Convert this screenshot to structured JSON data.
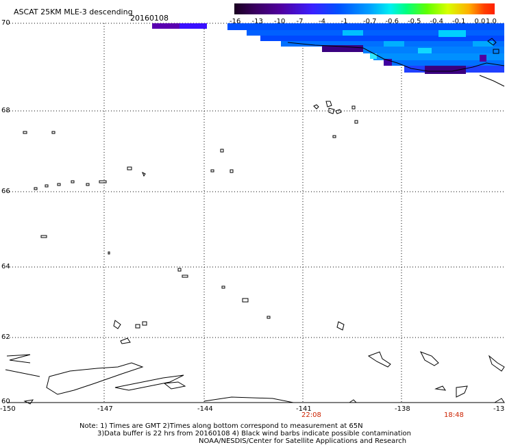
{
  "header": {
    "title": "ASCAT 25KM MLE-3 descending",
    "date": "20160108"
  },
  "colorbar": {
    "labels": [
      "-16",
      "-13",
      "-10",
      "-7",
      "-4",
      "-1",
      "-0.7",
      "-0.6",
      "-0.5",
      "-0.4",
      "-0.1",
      "0.0",
      "1.0"
    ],
    "colors": [
      "#1a0020",
      "#2a0050",
      "#3a0080",
      "#4800c0",
      "#3000ff",
      "#0040ff",
      "#0090ff",
      "#00e0ff",
      "#00ff80",
      "#60ff00",
      "#e0ff00",
      "#ffb000",
      "#ff4000"
    ]
  },
  "axes": {
    "lat_labels": [
      "70",
      "68",
      "66",
      "64",
      "62",
      "60"
    ],
    "lon_labels": [
      "-150",
      "-147",
      "-144",
      "-141",
      "-138",
      "-13"
    ],
    "times": [
      "22:08",
      "18:48"
    ]
  },
  "notes": {
    "line1": "Note: 1) Times are GMT 2)Times along bottom correspond to measurement at 65N",
    "line2": "3)Data buffer is 22 hrs from 20160108 4) Black wind barbs indicate possible contamination",
    "line3": "NOAA/NESDIS/Center for Satellite Applications and Research"
  }
}
